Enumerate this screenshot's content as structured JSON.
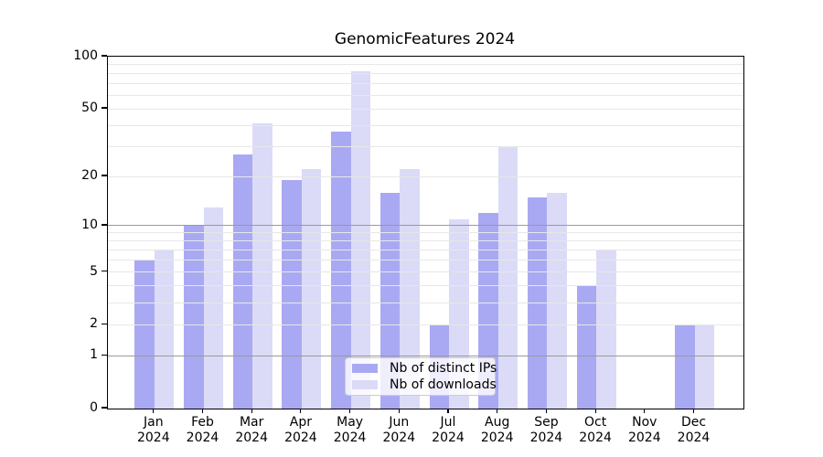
{
  "title": "GenomicFeatures 2024",
  "chart_data": {
    "type": "bar",
    "title": "GenomicFeatures 2024",
    "categories": [
      "Jan",
      "Feb",
      "Mar",
      "Apr",
      "May",
      "Jun",
      "Jul",
      "Aug",
      "Sep",
      "Oct",
      "Nov",
      "Dec"
    ],
    "x_tick_year_line": "2024",
    "series": [
      {
        "name": "Nb of distinct IPs",
        "color": "#a9a9f3",
        "values": [
          6,
          10,
          27,
          19,
          37,
          16,
          2,
          12,
          15,
          4,
          0,
          2
        ]
      },
      {
        "name": "Nb of downloads",
        "color": "#dbdbf7",
        "values": [
          7,
          13,
          41,
          22,
          82,
          22,
          11,
          30,
          16,
          7,
          0,
          2
        ]
      }
    ],
    "y_scale": "log1p",
    "ylim": [
      0,
      100
    ],
    "y_ticks": [
      0,
      1,
      2,
      5,
      10,
      20,
      50,
      100
    ],
    "y_minor_gridlines": [
      2,
      3,
      4,
      5,
      6,
      7,
      8,
      9,
      20,
      30,
      40,
      50,
      60,
      70,
      80,
      90
    ],
    "y_major_gridlines": [
      1,
      10
    ],
    "grid": true,
    "legend_position": "lower center",
    "background_color": "#ffffff",
    "axis_color": "#000000",
    "minor_grid_color": "#e7e7e7",
    "major_grid_color": "#9a9a9a",
    "legend_border_color": "#cccccc"
  }
}
